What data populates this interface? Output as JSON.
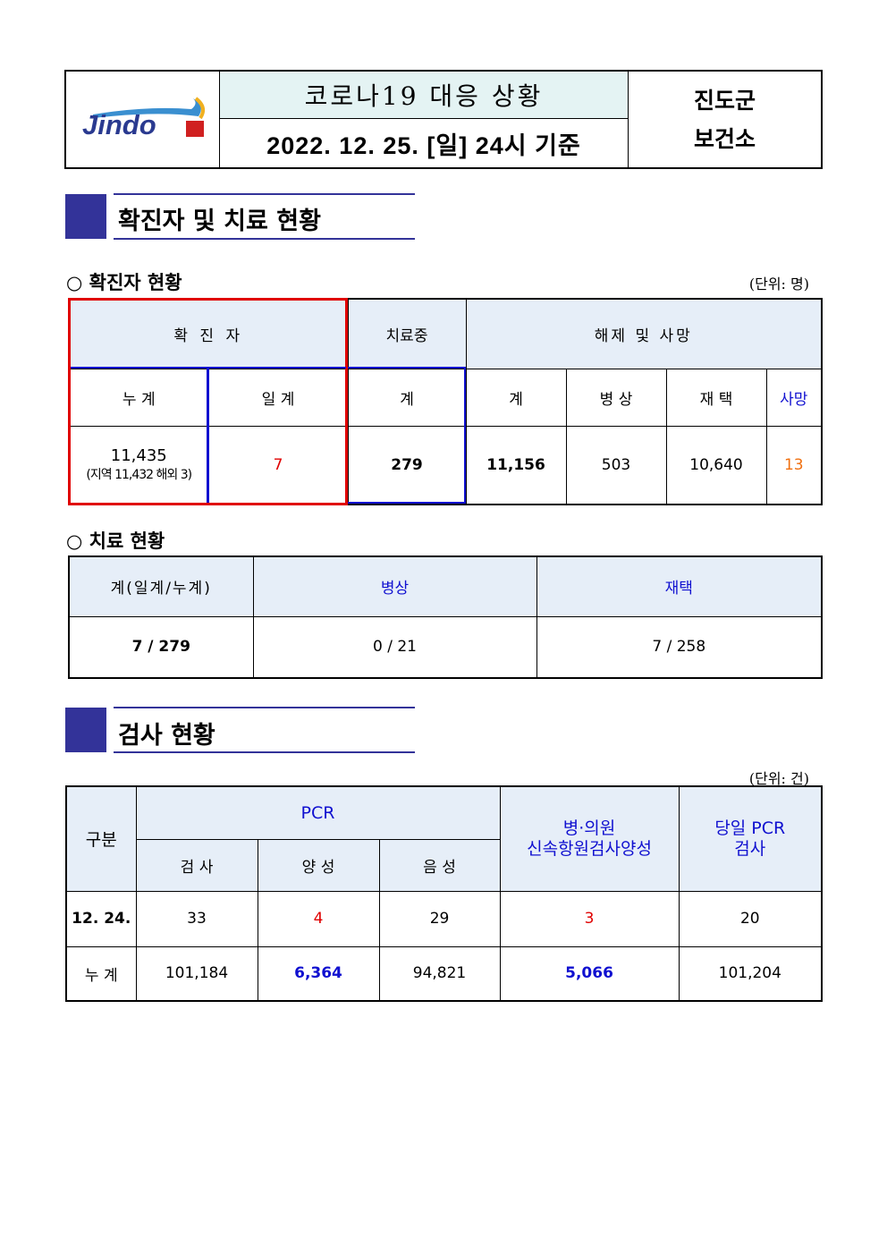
{
  "header": {
    "logo_text": "Jindo",
    "title": "코로나19 대응 상황",
    "date": "2022. 12. 25. [일] 24시 기준",
    "org_line1": "진도군",
    "org_line2": "보건소"
  },
  "section1": {
    "title": "확진자 및 치료 현황"
  },
  "confirmed": {
    "subtitle": "○ 확진자 현황",
    "unit": "(단위:  명)",
    "h_confirmed": "확 진 자",
    "h_treating": "치료중",
    "h_released": "해제 및 사망",
    "h_cum": "누 계",
    "h_daily": "일 계",
    "h_treat_total": "계",
    "h_rel_total": "계",
    "h_hospital": "병 상",
    "h_home": "재 택",
    "h_death": "사망",
    "cum": "11,435",
    "cum_detail": "(지역 11,432 해외 3)",
    "daily": "7",
    "treating": "279",
    "rel_total": "11,156",
    "hospital": "503",
    "home": "10,640",
    "death": "13"
  },
  "treatment": {
    "subtitle": "○ 치료 현황",
    "h_total": "계(일계/누계)",
    "h_hospital": "병상",
    "h_home": "재택",
    "total": "7 / 279",
    "hospital": "0 / 21",
    "home": "7 / 258"
  },
  "section2": {
    "title": "검사 현황"
  },
  "tests": {
    "unit": "(단위:  건)",
    "h_category": "구분",
    "h_pcr": "PCR",
    "h_test": "검 사",
    "h_pos": "양 성",
    "h_neg": "음 성",
    "h_rapid": "병·의원\n신속항원검사양성",
    "h_sameday": "당일 PCR\n검사",
    "rows": [
      {
        "label": "12. 24.",
        "test": "33",
        "pos": "4",
        "neg": "29",
        "rapid": "3",
        "sameday": "20"
      },
      {
        "label": "누 계",
        "test": "101,184",
        "pos": "6,364",
        "neg": "94,821",
        "rapid": "5,066",
        "sameday": "101,204"
      }
    ]
  },
  "colors": {
    "accent": "#333399",
    "red": "#e00000",
    "blue": "#1010d0",
    "header_bg": "#e6eef8",
    "title_bg": "#e4f3f3"
  }
}
